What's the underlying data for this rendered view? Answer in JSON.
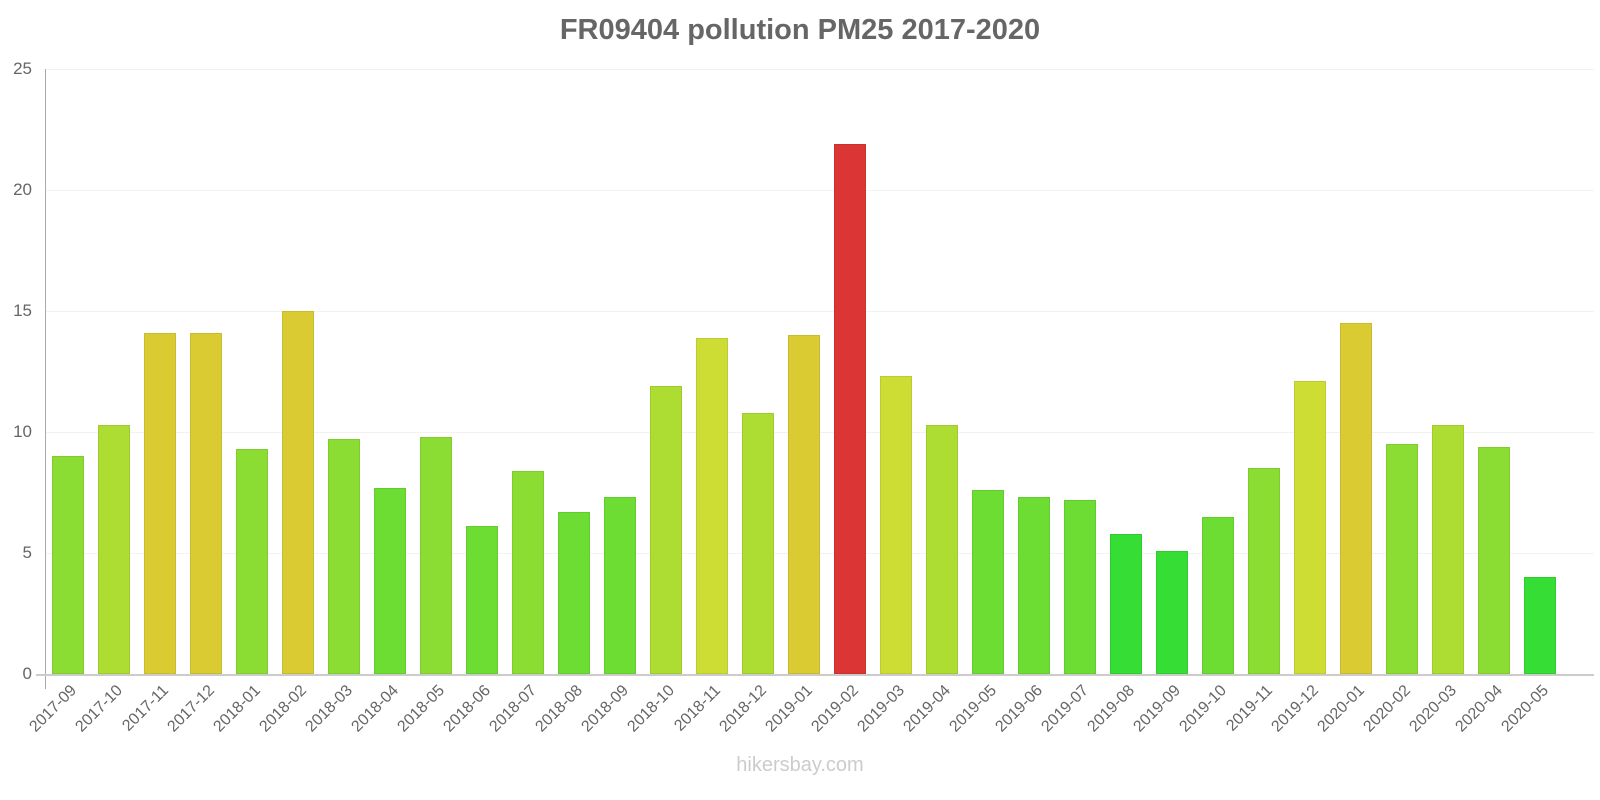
{
  "title": "FR09404 pollution PM25 2017-2020",
  "watermark": "hikersbay.com",
  "chart_data": {
    "type": "bar",
    "title": "FR09404 pollution PM25 2017-2020",
    "xlabel": "",
    "ylabel": "",
    "ylim": [
      0,
      25
    ],
    "yticks": [
      0,
      5,
      10,
      15,
      20,
      25
    ],
    "grid": true,
    "legend": null,
    "categories": [
      "2017-09",
      "2017-10",
      "2017-11",
      "2017-12",
      "2018-01",
      "2018-02",
      "2018-03",
      "2018-04",
      "2018-05",
      "2018-06",
      "2018-07",
      "2018-08",
      "2018-09",
      "2018-10",
      "2018-11",
      "2018-12",
      "2019-01",
      "2019-02",
      "2019-03",
      "2019-04",
      "2019-05",
      "2019-06",
      "2019-07",
      "2019-08",
      "2019-09",
      "2019-10",
      "2019-11",
      "2019-12",
      "2020-01",
      "2020-02",
      "2020-03",
      "2020-04",
      "2020-05"
    ],
    "values": [
      9.0,
      10.3,
      14.1,
      14.1,
      9.3,
      15.0,
      9.7,
      7.7,
      9.8,
      6.1,
      8.4,
      6.7,
      7.3,
      11.9,
      13.9,
      10.8,
      14.0,
      21.9,
      12.3,
      10.3,
      7.6,
      7.3,
      7.2,
      5.8,
      5.1,
      6.5,
      8.5,
      12.1,
      14.5,
      9.5,
      10.3,
      9.4,
      4.0
    ],
    "colors": [
      "#8cdd33",
      "#addd33",
      "#dbcb33",
      "#dbcb33",
      "#8cdd33",
      "#dbcb33",
      "#8cdd33",
      "#6ddd33",
      "#8cdd33",
      "#6ddd33",
      "#8cdd33",
      "#6ddd33",
      "#6ddd33",
      "#addd33",
      "#cddd33",
      "#addd33",
      "#dbcb33",
      "#db3535",
      "#cddd33",
      "#addd33",
      "#6ddd33",
      "#6ddd33",
      "#6ddd33",
      "#35dd35",
      "#35dd35",
      "#6ddd33",
      "#8cdd33",
      "#cddd33",
      "#dbcb33",
      "#8cdd33",
      "#addd33",
      "#8cdd33",
      "#35dd35"
    ]
  }
}
